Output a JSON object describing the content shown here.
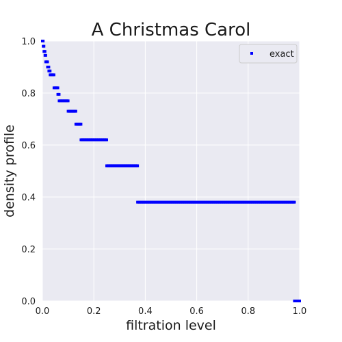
{
  "chart_data": {
    "type": "scatter",
    "title": "A Christmas Carol",
    "xlabel": "filtration level",
    "ylabel": "density profile",
    "xlim": [
      0,
      1
    ],
    "ylim": [
      0,
      1
    ],
    "xticks": [
      "0.0",
      "0.2",
      "0.4",
      "0.6",
      "0.8",
      "1.0"
    ],
    "yticks": [
      "0.0",
      "0.2",
      "0.4",
      "0.6",
      "0.8",
      "1.0"
    ],
    "grid": true,
    "legend_position": "top-right",
    "series": [
      {
        "name": "exact",
        "color": "#0000ff",
        "marker": "square",
        "segments": [
          {
            "x_start": 0.0,
            "x_end": 0.003,
            "y": 1.0
          },
          {
            "x_start": 0.003,
            "x_end": 0.006,
            "y": 0.98
          },
          {
            "x_start": 0.006,
            "x_end": 0.01,
            "y": 0.96
          },
          {
            "x_start": 0.01,
            "x_end": 0.013,
            "y": 0.945
          },
          {
            "x_start": 0.013,
            "x_end": 0.02,
            "y": 0.92
          },
          {
            "x_start": 0.02,
            "x_end": 0.025,
            "y": 0.9
          },
          {
            "x_start": 0.025,
            "x_end": 0.03,
            "y": 0.885
          },
          {
            "x_start": 0.03,
            "x_end": 0.045,
            "y": 0.87
          },
          {
            "x_start": 0.045,
            "x_end": 0.06,
            "y": 0.82
          },
          {
            "x_start": 0.06,
            "x_end": 0.065,
            "y": 0.795
          },
          {
            "x_start": 0.065,
            "x_end": 0.1,
            "y": 0.77
          },
          {
            "x_start": 0.1,
            "x_end": 0.13,
            "y": 0.73
          },
          {
            "x_start": 0.13,
            "x_end": 0.15,
            "y": 0.68
          },
          {
            "x_start": 0.15,
            "x_end": 0.25,
            "y": 0.62
          },
          {
            "x_start": 0.25,
            "x_end": 0.37,
            "y": 0.52
          },
          {
            "x_start": 0.37,
            "x_end": 0.98,
            "y": 0.38
          },
          {
            "x_start": 0.98,
            "x_end": 1.0,
            "y": 0.0
          }
        ]
      }
    ]
  }
}
